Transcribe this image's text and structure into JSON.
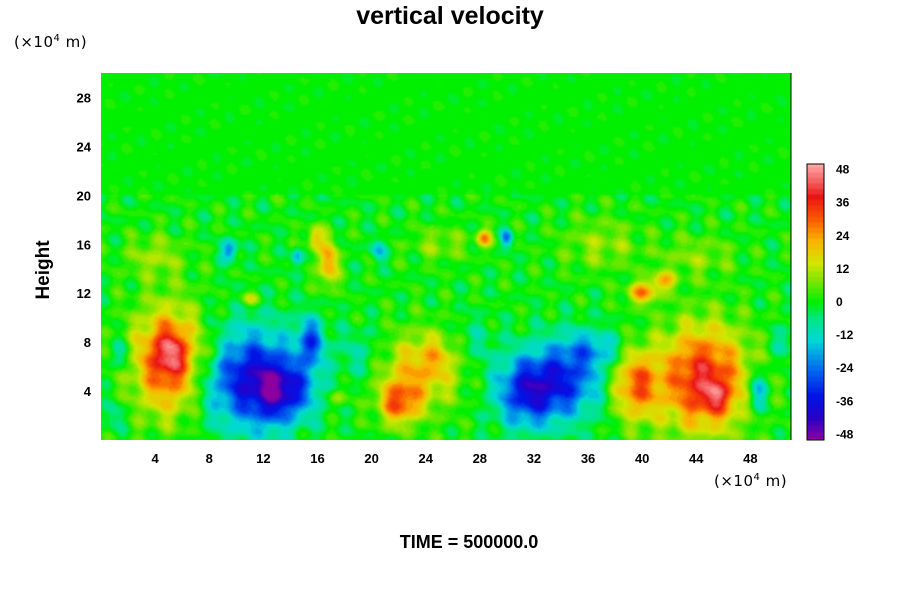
{
  "chart_data": {
    "type": "heatmap",
    "title": "vertical velocity",
    "ylabel": "Height",
    "y_unit": {
      "prefix": "(×10",
      "exp": "4",
      "suffix": " m)"
    },
    "x_unit": {
      "prefix": "(×10",
      "exp": "4",
      "suffix": " m)"
    },
    "footer": "TIME = 500000.0",
    "xlim": [
      0,
      51
    ],
    "ylim": [
      0,
      30
    ],
    "x_ticks": [
      4,
      8,
      12,
      16,
      20,
      24,
      28,
      32,
      36,
      40,
      44,
      48
    ],
    "y_ticks": [
      4,
      8,
      12,
      16,
      20,
      24,
      28
    ],
    "colorbar": {
      "range": [
        -50,
        50
      ],
      "ticks": [
        48,
        36,
        24,
        12,
        0,
        -12,
        -24,
        -36,
        -48
      ]
    },
    "features": [
      {
        "x": 5,
        "y": 6.5,
        "sx": 1.8,
        "sy": 3,
        "v": 36
      },
      {
        "x": 5.2,
        "y": 7.2,
        "sx": 0.8,
        "sy": 1.2,
        "v": 14
      },
      {
        "x": 11,
        "y": 5,
        "sx": 2.4,
        "sy": 2.8,
        "v": -36
      },
      {
        "x": 14,
        "y": 4,
        "sx": 1.4,
        "sy": 1.6,
        "v": -22
      },
      {
        "x": 15.5,
        "y": 8,
        "sx": 0.7,
        "sy": 1.4,
        "v": -26
      },
      {
        "x": 12.5,
        "y": 4,
        "sx": 1.0,
        "sy": 2.0,
        "v": -10
      },
      {
        "x": 8.5,
        "y": 7.5,
        "sx": 0.6,
        "sy": 0.8,
        "v": 6
      },
      {
        "x": 22,
        "y": 3,
        "sx": 1.0,
        "sy": 1.2,
        "v": 26
      },
      {
        "x": 23.5,
        "y": 5.5,
        "sx": 2.0,
        "sy": 2.2,
        "v": 20
      },
      {
        "x": 25,
        "y": 7,
        "sx": 1.2,
        "sy": 1.2,
        "v": 8
      },
      {
        "x": 31.5,
        "y": 4,
        "sx": 1.6,
        "sy": 2.0,
        "v": -34
      },
      {
        "x": 34.5,
        "y": 5,
        "sx": 1.8,
        "sy": 2.2,
        "v": -28
      },
      {
        "x": 36.5,
        "y": 7.5,
        "sx": 1.5,
        "sy": 1.0,
        "v": -14
      },
      {
        "x": 39.5,
        "y": 4.5,
        "sx": 1.2,
        "sy": 2.0,
        "v": 28
      },
      {
        "x": 44.5,
        "y": 5,
        "sx": 2.3,
        "sy": 3.0,
        "v": 38
      },
      {
        "x": 45.5,
        "y": 3.5,
        "sx": 0.8,
        "sy": 0.9,
        "v": 14
      },
      {
        "x": 48.5,
        "y": 4,
        "sx": 0.5,
        "sy": 1.2,
        "v": -22
      },
      {
        "x": 1.5,
        "y": 7,
        "sx": 0.5,
        "sy": 0.8,
        "v": -12
      },
      {
        "x": 16.8,
        "y": 14.5,
        "sx": 0.5,
        "sy": 1.3,
        "v": 26
      },
      {
        "x": 15.8,
        "y": 16.5,
        "sx": 0.4,
        "sy": 0.7,
        "v": 20
      },
      {
        "x": 9.5,
        "y": 15.5,
        "sx": 0.4,
        "sy": 0.6,
        "v": -24
      },
      {
        "x": 28.3,
        "y": 16.5,
        "sx": 0.4,
        "sy": 0.5,
        "v": 24
      },
      {
        "x": 30,
        "y": 16.5,
        "sx": 0.3,
        "sy": 0.5,
        "v": -22
      },
      {
        "x": 20.5,
        "y": 15.5,
        "sx": 0.4,
        "sy": 0.6,
        "v": -16
      },
      {
        "x": 14.5,
        "y": 15,
        "sx": 0.3,
        "sy": 0.5,
        "v": -18
      },
      {
        "x": 40,
        "y": 12,
        "sx": 0.8,
        "sy": 0.6,
        "v": 24
      },
      {
        "x": 41.5,
        "y": 13,
        "sx": 0.7,
        "sy": 0.5,
        "v": 20
      },
      {
        "x": 4,
        "y": 15,
        "sx": 1.5,
        "sy": 1.2,
        "v": 10
      },
      {
        "x": 37,
        "y": 16,
        "sx": 2.0,
        "sy": 1.5,
        "v": 9
      },
      {
        "x": 44,
        "y": 15,
        "sx": 2.0,
        "sy": 1.2,
        "v": 8
      },
      {
        "x": 11,
        "y": 11.5,
        "sx": 0.6,
        "sy": 0.4,
        "v": 12
      },
      {
        "x": 25,
        "y": 16,
        "sx": 1.5,
        "sy": 1.0,
        "v": 8
      },
      {
        "x": 19,
        "y": 7,
        "sx": 1.2,
        "sy": 1.5,
        "v": -8
      },
      {
        "x": 27.5,
        "y": 8,
        "sx": 1.2,
        "sy": 1.4,
        "v": -7
      },
      {
        "x": 50.5,
        "y": 8,
        "sx": 0.6,
        "sy": 1.0,
        "v": -9
      },
      {
        "x": 1,
        "y": 2,
        "sx": 0.6,
        "sy": 0.8,
        "v": -8
      },
      {
        "x": 17.5,
        "y": 3.5,
        "sx": 0.5,
        "sy": 0.5,
        "v": 10
      }
    ]
  }
}
